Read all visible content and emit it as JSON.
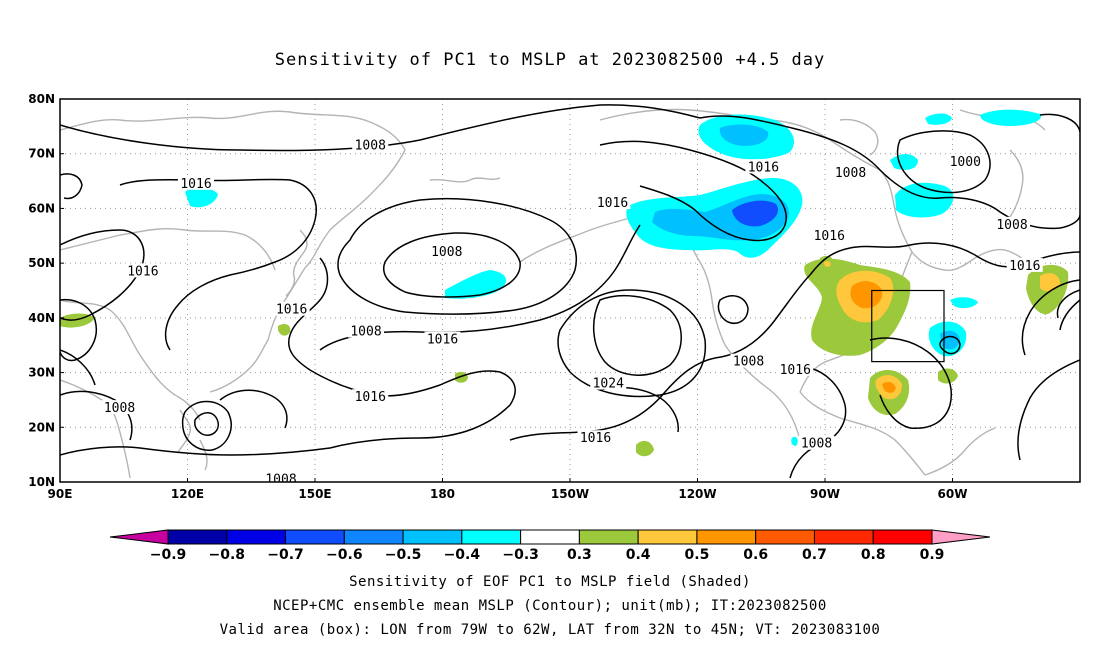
{
  "title": "Sensitivity of PC1 to MSLP at 2023082500 +4.5 day",
  "lat_labels": [
    "80N",
    "70N",
    "60N",
    "50N",
    "40N",
    "30N",
    "20N",
    "10N"
  ],
  "lon_labels": [
    "90E",
    "120E",
    "150E",
    "180",
    "150W",
    "120W",
    "90W",
    "60W"
  ],
  "contour_labels": [
    {
      "text": "1008",
      "lon": 163,
      "lat": 71.5
    },
    {
      "text": "1016",
      "lon": 255.5,
      "lat": 67.5
    },
    {
      "text": "1008",
      "lon": 276,
      "lat": 66.5
    },
    {
      "text": "1000",
      "lon": 303,
      "lat": 68.5
    },
    {
      "text": "1016",
      "lon": 122,
      "lat": 64.5
    },
    {
      "text": "1016",
      "lon": 220,
      "lat": 61
    },
    {
      "text": "1008",
      "lon": 181,
      "lat": 52
    },
    {
      "text": "1016",
      "lon": 271,
      "lat": 55
    },
    {
      "text": "1008",
      "lon": 314,
      "lat": 57
    },
    {
      "text": "1016",
      "lon": 317,
      "lat": 49.5
    },
    {
      "text": "1016",
      "lon": 109.5,
      "lat": 48.5
    },
    {
      "text": "1016",
      "lon": 144.5,
      "lat": 41.5
    },
    {
      "text": "1008",
      "lon": 162,
      "lat": 37.5
    },
    {
      "text": "1016",
      "lon": 180,
      "lat": 36
    },
    {
      "text": "1008",
      "lon": 252,
      "lat": 32
    },
    {
      "text": "1016",
      "lon": 263,
      "lat": 30.5
    },
    {
      "text": "1024",
      "lon": 219,
      "lat": 28
    },
    {
      "text": "1008",
      "lon": 104,
      "lat": 23.5
    },
    {
      "text": "1016",
      "lon": 163,
      "lat": 25.5
    },
    {
      "text": "1016",
      "lon": 216,
      "lat": 18
    },
    {
      "text": "1008",
      "lon": 268,
      "lat": 17
    },
    {
      "text": "1008",
      "lon": 142,
      "lat": 10.5
    }
  ],
  "valid_box": {
    "lon_min": -79,
    "lon_max": -62,
    "lat_min": 32,
    "lat_max": 45
  },
  "colorbar": {
    "colors": [
      "#c6009e",
      "#0000a6",
      "#0000e6",
      "#0f4dff",
      "#0f85ff",
      "#00c0ff",
      "#00ffff",
      "#ffffff",
      "#9cc83c",
      "#ffc83c",
      "#ff9600",
      "#ff5a00",
      "#ff2800",
      "#ff0000",
      "#ff9ec6"
    ],
    "labels": [
      "−0.9",
      "−0.8",
      "−0.7",
      "−0.6",
      "−0.5",
      "−0.4",
      "−0.3",
      "0.3",
      "0.4",
      "0.5",
      "0.6",
      "0.7",
      "0.8",
      "0.9"
    ]
  },
  "footer": {
    "line1": "Sensitivity of EOF PC1 to MSLP field (Shaded)",
    "line2": "NCEP+CMC ensemble mean MSLP (Contour); unit(mb); IT:2023082500",
    "line3": "Valid area (box): LON from 79W to 62W, LAT from 32N to 45N; VT: 2023083100"
  }
}
